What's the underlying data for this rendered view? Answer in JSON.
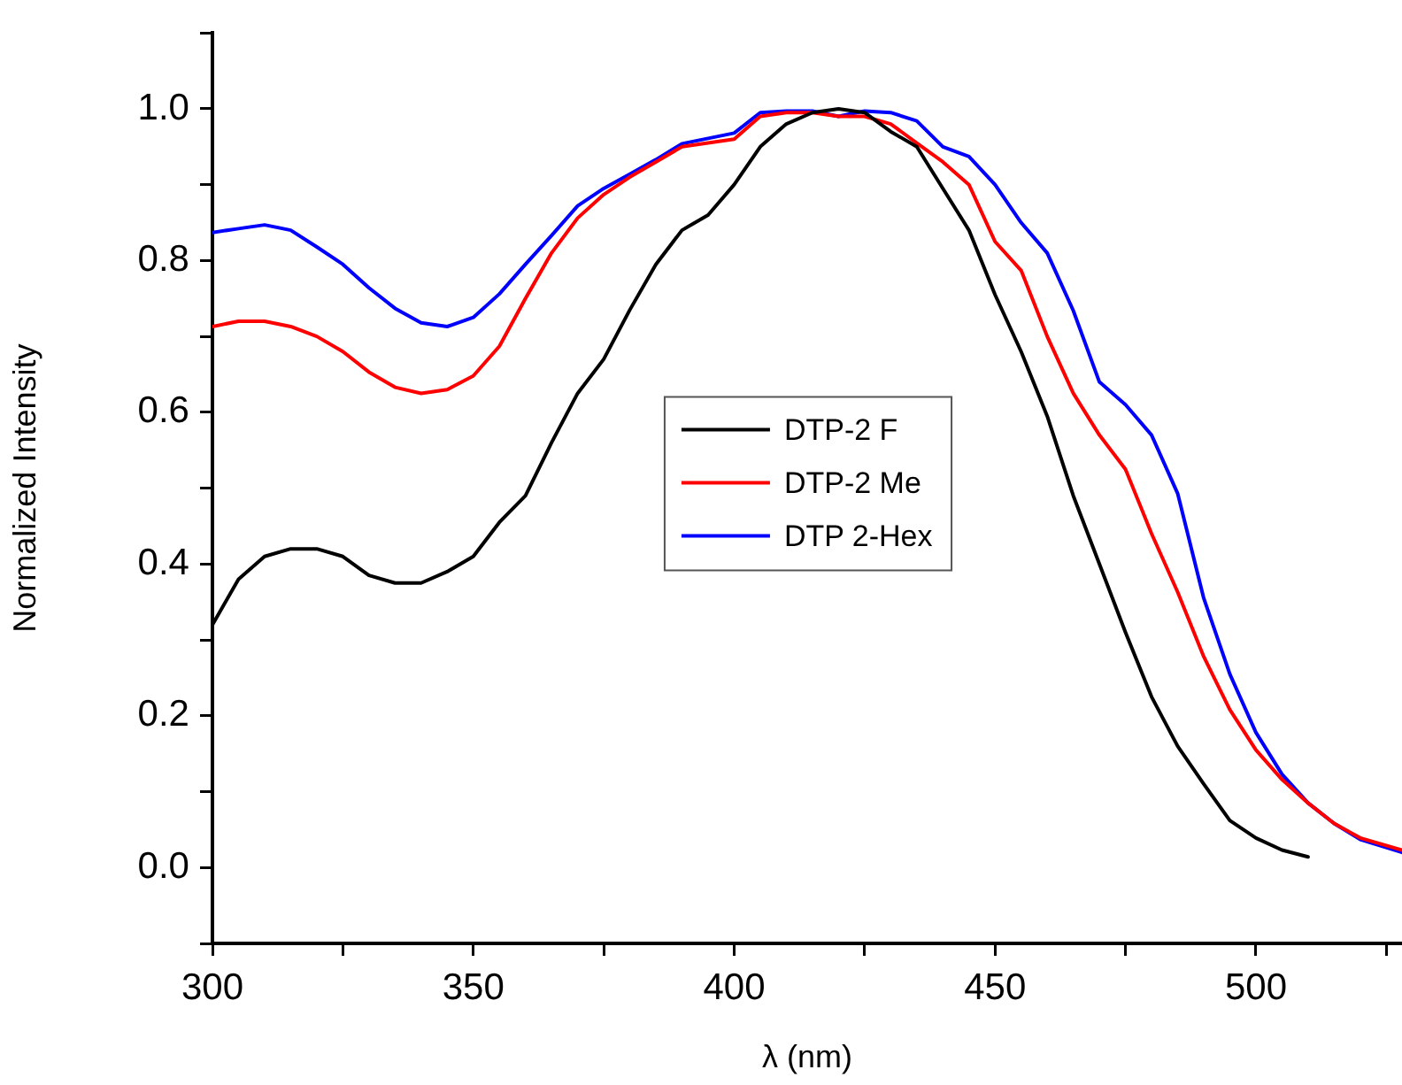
{
  "chart_data": {
    "type": "line",
    "xlabel": "λ (nm)",
    "ylabel": "Normalized Intensity",
    "xlim": [
      300,
      528
    ],
    "ylim": [
      -0.1,
      1.1
    ],
    "xticks": [
      300,
      {
        "value": 325,
        "label": null
      },
      350,
      {
        "value": 375,
        "label": null
      },
      400,
      {
        "value": 425,
        "label": null
      },
      450,
      {
        "value": 475,
        "label": null
      },
      500,
      {
        "value": 525,
        "label": null
      }
    ],
    "yticks": [
      {
        "value": -0.1,
        "label": null
      },
      {
        "value": 0,
        "label": "0.0"
      },
      {
        "value": 0.1,
        "label": null
      },
      0.2,
      {
        "value": 0.3,
        "label": null
      },
      0.4,
      {
        "value": 0.5,
        "label": null
      },
      0.6,
      {
        "value": 0.7,
        "label": null
      },
      0.8,
      {
        "value": 0.9,
        "label": null
      },
      {
        "value": 1,
        "label": "1.0"
      },
      {
        "value": 1.1,
        "label": null
      }
    ],
    "grid": false,
    "legend": "center",
    "marker": "none",
    "line_style": "solid",
    "series": [
      {
        "name": "DTP-2 F",
        "color": "#000000",
        "x": [
          300,
          305,
          310,
          315,
          320,
          325,
          330,
          335,
          340,
          345,
          350,
          355,
          360,
          365,
          370,
          375,
          380,
          385,
          390,
          395,
          400,
          405,
          410,
          415,
          420,
          425,
          430,
          435,
          440,
          445,
          450,
          455,
          460,
          465,
          470,
          475,
          480,
          485,
          490,
          495,
          500,
          505,
          510
        ],
        "values": [
          0.32,
          0.38,
          0.41,
          0.42,
          0.42,
          0.41,
          0.385,
          0.375,
          0.375,
          0.39,
          0.41,
          0.455,
          0.49,
          0.56,
          0.625,
          0.67,
          0.735,
          0.795,
          0.84,
          0.86,
          0.9,
          0.95,
          0.98,
          0.995,
          1.0,
          0.995,
          0.97,
          0.95,
          0.895,
          0.84,
          0.755,
          0.68,
          0.595,
          0.49,
          0.4,
          0.31,
          0.225,
          0.16,
          0.11,
          0.062,
          0.039,
          0.023,
          0.014
        ]
      },
      {
        "name": "DTP-2 Me",
        "color": "#ff0000",
        "x": [
          300,
          305,
          310,
          315,
          320,
          325,
          330,
          335,
          340,
          345,
          350,
          355,
          360,
          365,
          370,
          375,
          380,
          385,
          390,
          395,
          400,
          405,
          410,
          415,
          420,
          425,
          430,
          435,
          440,
          445,
          450,
          455,
          460,
          465,
          470,
          475,
          480,
          485,
          490,
          495,
          500,
          505,
          510,
          515,
          520,
          528
        ],
        "values": [
          0.713,
          0.72,
          0.72,
          0.713,
          0.7,
          0.68,
          0.653,
          0.633,
          0.625,
          0.63,
          0.648,
          0.687,
          0.75,
          0.81,
          0.856,
          0.887,
          0.91,
          0.93,
          0.95,
          0.955,
          0.96,
          0.99,
          0.995,
          0.995,
          0.99,
          0.99,
          0.98,
          0.955,
          0.93,
          0.9,
          0.825,
          0.787,
          0.7,
          0.625,
          0.57,
          0.525,
          0.44,
          0.363,
          0.278,
          0.208,
          0.155,
          0.116,
          0.085,
          0.058,
          0.039,
          0.023
        ]
      },
      {
        "name": "DTP 2-Hex",
        "color": "#0000ff",
        "x": [
          300,
          305,
          310,
          315,
          320,
          325,
          330,
          335,
          340,
          345,
          350,
          355,
          360,
          365,
          370,
          375,
          380,
          385,
          390,
          395,
          400,
          405,
          410,
          415,
          420,
          425,
          430,
          435,
          440,
          445,
          450,
          455,
          460,
          465,
          470,
          475,
          480,
          485,
          490,
          495,
          500,
          505,
          510,
          515,
          520,
          528
        ],
        "values": [
          0.837,
          0.842,
          0.847,
          0.84,
          0.818,
          0.795,
          0.764,
          0.737,
          0.718,
          0.713,
          0.725,
          0.756,
          0.795,
          0.833,
          0.872,
          0.895,
          0.914,
          0.933,
          0.954,
          0.961,
          0.968,
          0.995,
          0.997,
          0.997,
          0.99,
          0.997,
          0.995,
          0.984,
          0.95,
          0.937,
          0.9,
          0.85,
          0.81,
          0.734,
          0.64,
          0.61,
          0.57,
          0.493,
          0.355,
          0.255,
          0.178,
          0.123,
          0.085,
          0.058,
          0.037,
          0.02
        ]
      }
    ]
  }
}
